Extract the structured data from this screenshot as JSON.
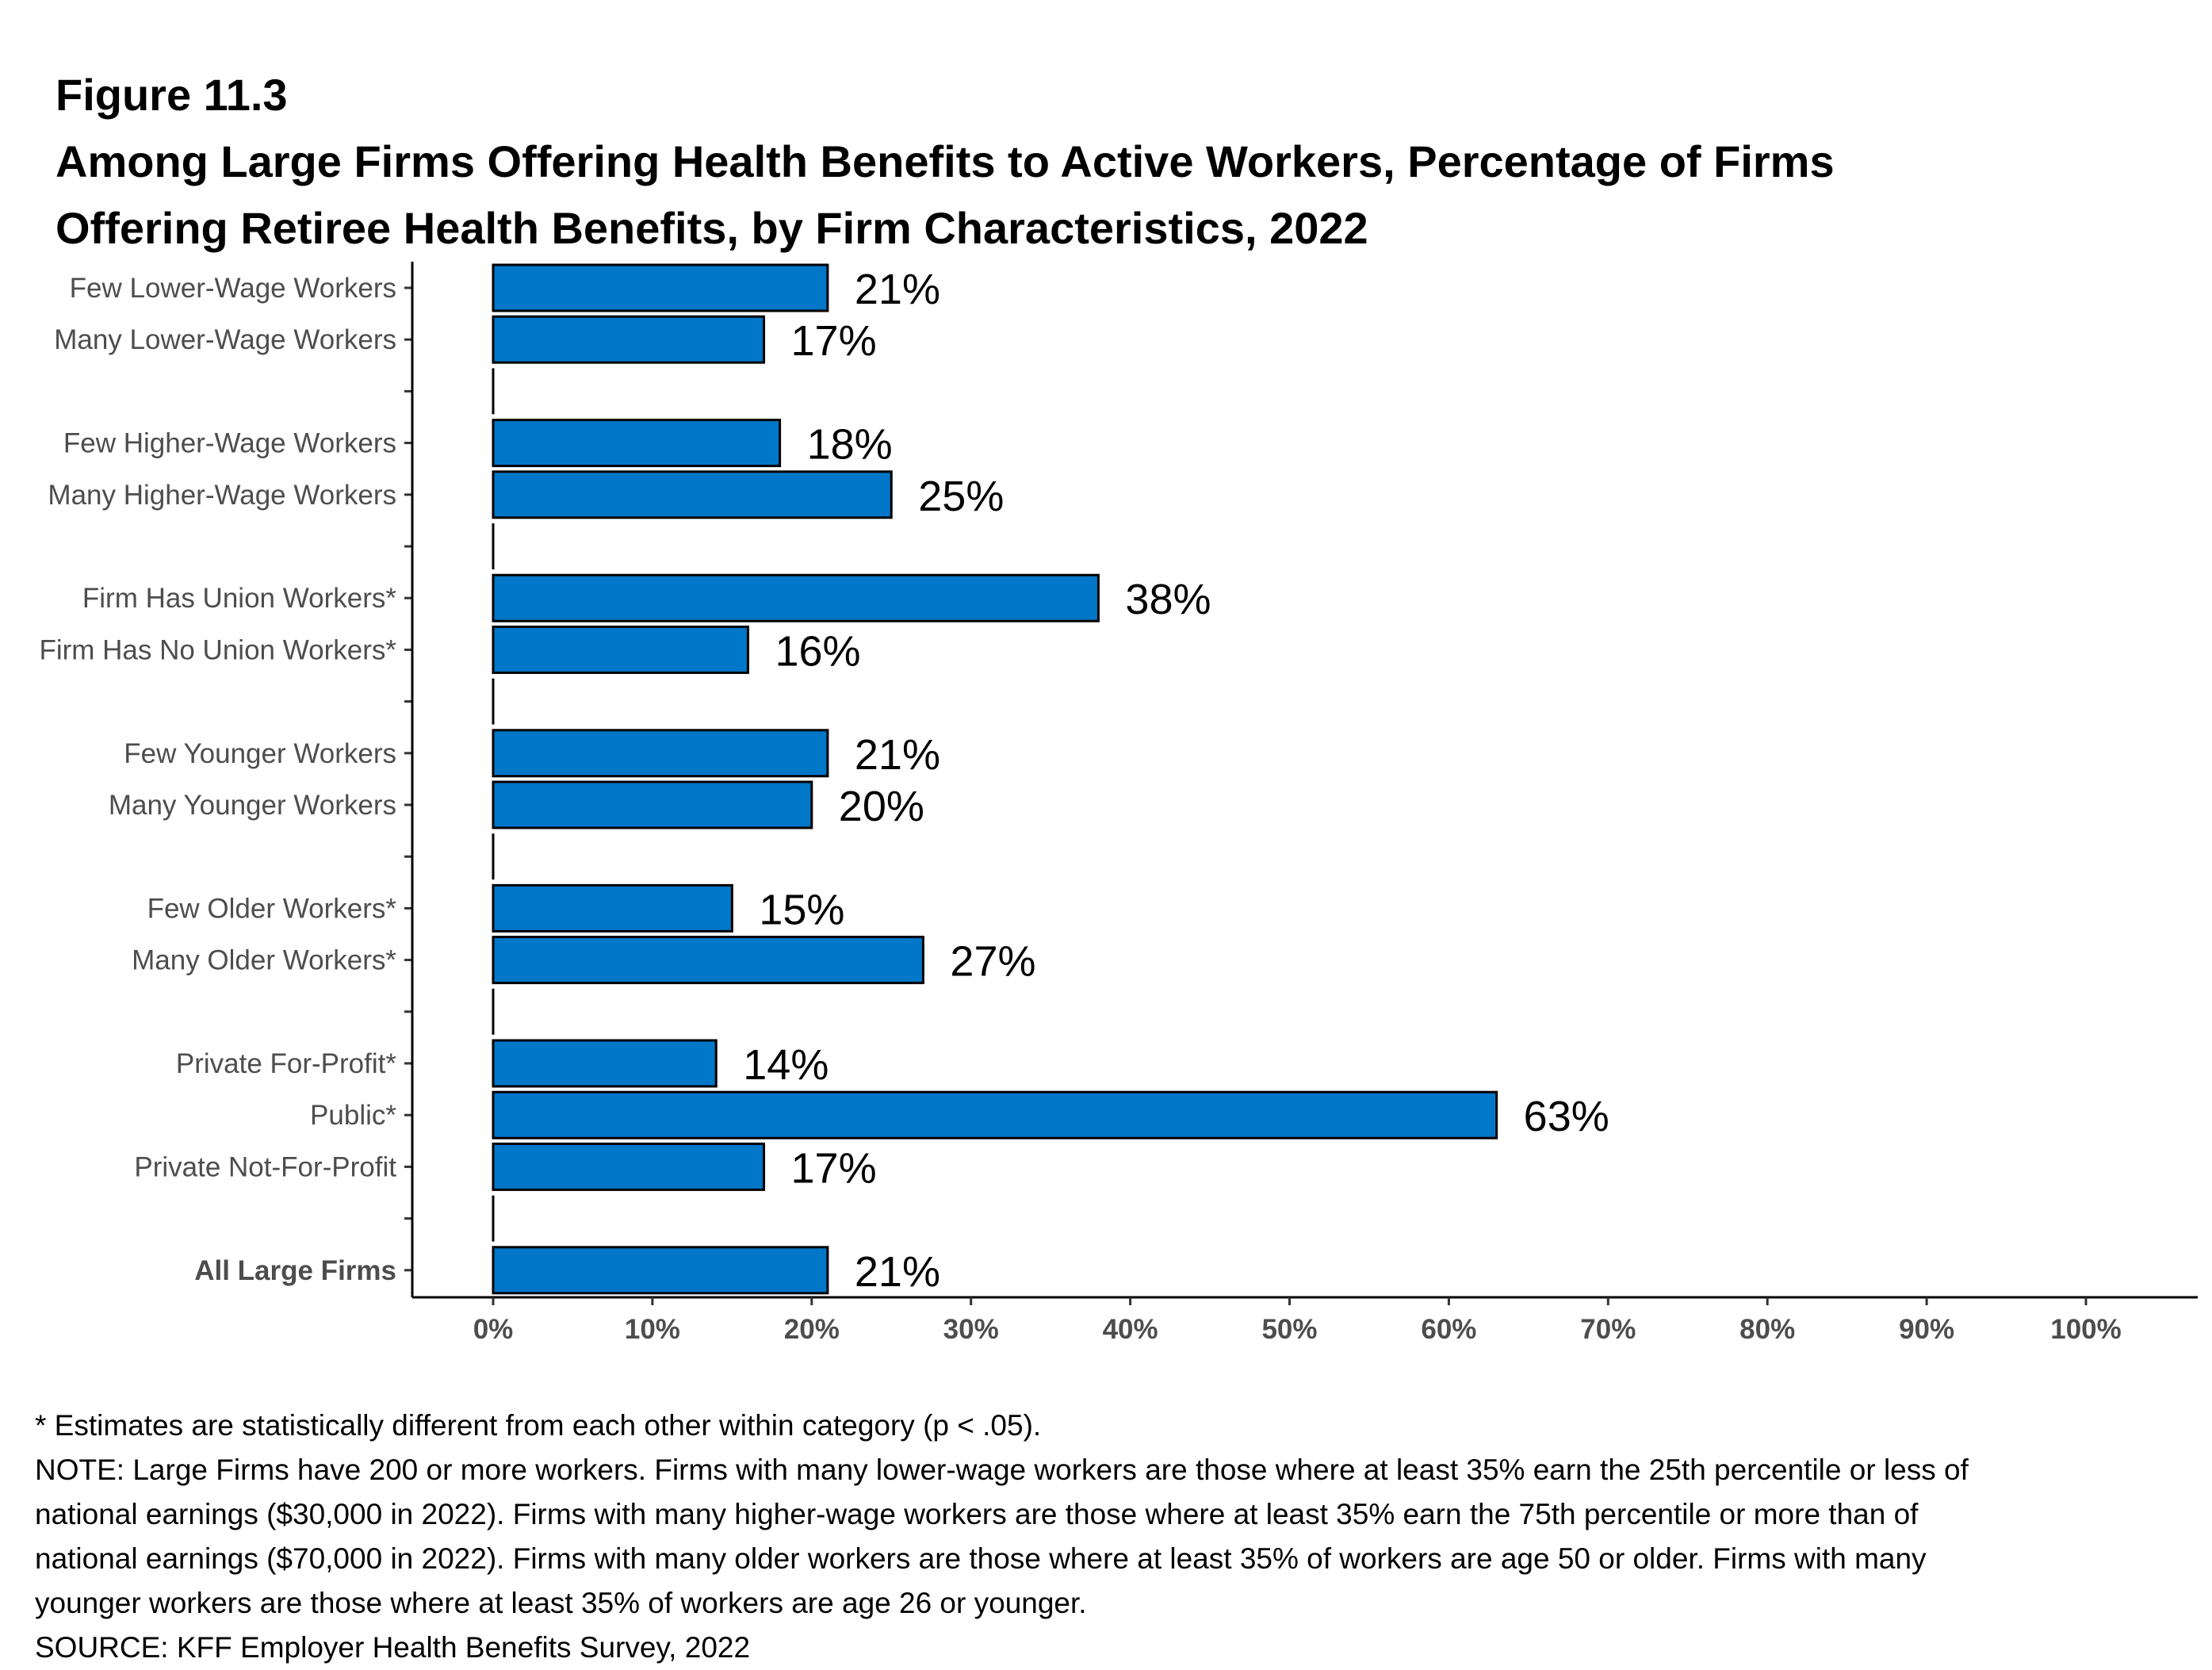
{
  "figure": {
    "label": "Figure 11.3",
    "title_line1": "Among Large Firms Offering Health Benefits to Active Workers, Percentage of Firms",
    "title_line2": "Offering Retiree Health Benefits, by Firm Characteristics, 2022"
  },
  "chart_data": {
    "type": "bar",
    "orientation": "horizontal",
    "bar_color": "#0077C8",
    "xlim": [
      0,
      100
    ],
    "x_ticks": [
      "0%",
      "10%",
      "20%",
      "30%",
      "40%",
      "50%",
      "60%",
      "70%",
      "80%",
      "90%",
      "100%"
    ],
    "grid": false,
    "groups": [
      {
        "items": [
          {
            "label": "Few Lower-Wage Workers",
            "value": 21,
            "value_label": "21%"
          },
          {
            "label": "Many Lower-Wage Workers",
            "value": 17,
            "value_label": "17%"
          }
        ]
      },
      {
        "items": [
          {
            "label": "Few Higher-Wage Workers",
            "value": 18,
            "value_label": "18%"
          },
          {
            "label": "Many Higher-Wage Workers",
            "value": 25,
            "value_label": "25%"
          }
        ]
      },
      {
        "items": [
          {
            "label": "Firm Has Union Workers*",
            "value": 38,
            "value_label": "38%"
          },
          {
            "label": "Firm Has No Union Workers*",
            "value": 16,
            "value_label": "16%"
          }
        ]
      },
      {
        "items": [
          {
            "label": "Few Younger Workers",
            "value": 21,
            "value_label": "21%"
          },
          {
            "label": "Many Younger Workers",
            "value": 20,
            "value_label": "20%"
          }
        ]
      },
      {
        "items": [
          {
            "label": "Few Older Workers*",
            "value": 15,
            "value_label": "15%"
          },
          {
            "label": "Many Older Workers*",
            "value": 27,
            "value_label": "27%"
          }
        ]
      },
      {
        "items": [
          {
            "label": "Private For-Profit*",
            "value": 14,
            "value_label": "14%"
          },
          {
            "label": "Public*",
            "value": 63,
            "value_label": "63%"
          },
          {
            "label": "Private Not-For-Profit",
            "value": 17,
            "value_label": "17%"
          }
        ]
      },
      {
        "items": [
          {
            "label": "All Large Firms",
            "value": 21,
            "value_label": "21%",
            "bold": true
          }
        ]
      }
    ]
  },
  "notes": {
    "significance": "* Estimates are statistically different from each other within category (p < .05).",
    "note_line1": "NOTE: Large Firms have 200 or more workers. Firms with many lower-wage workers are those where at least 35% earn the 25th percentile or less of",
    "note_line2": "national earnings ($30,000 in 2022). Firms with many higher-wage workers are those where at least 35% earn the 75th percentile or more than of",
    "note_line3": "national earnings ($70,000 in 2022). Firms with many older workers are those where at least 35% of workers are age 50 or older. Firms with many",
    "note_line4": "younger workers are those where at least 35% of workers are age 26 or younger.",
    "source": "SOURCE: KFF Employer Health Benefits Survey, 2022"
  }
}
